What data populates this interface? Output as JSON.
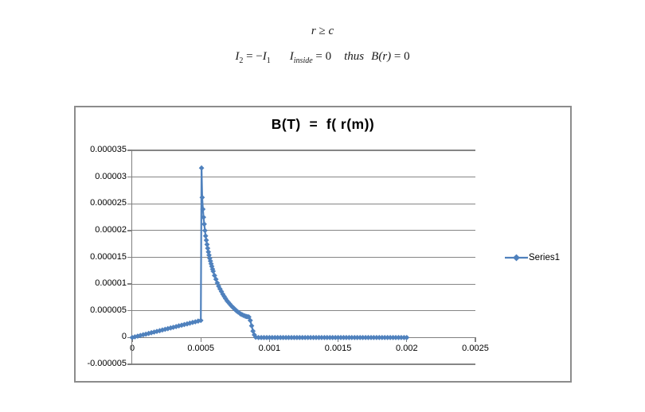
{
  "equations": {
    "line1": {
      "r": "r",
      "rel": " ≥ ",
      "c": "c"
    },
    "line2": {
      "I2": "I",
      "I2sub": "2",
      "rel1": " = −",
      "I1": "I",
      "I1sub": "1",
      "Iin": "I",
      "Iinsub": "inside",
      "rel2": " = 0",
      "thus": "thus",
      "B": "B(r)",
      "rel3": " = 0"
    }
  },
  "chart_data": {
    "type": "line",
    "title": "B(T)  =  f( r(m))",
    "xlabel": "",
    "ylabel": "",
    "grid": true,
    "legend_position": "right",
    "xlim": [
      0,
      0.0025
    ],
    "ylim": [
      -5e-06,
      3.5e-05
    ],
    "x_ticks": [
      0,
      0.0005,
      0.001,
      0.0015,
      0.002,
      0.0025
    ],
    "x_tick_labels": [
      "0",
      "0.0005",
      "0.001",
      "0.0015",
      "0.002",
      "0.0025"
    ],
    "y_ticks": [
      3.5e-05,
      3e-05,
      2.5e-05,
      2e-05,
      1.5e-05,
      1e-05,
      5e-06,
      0,
      -5e-06
    ],
    "y_tick_labels": [
      "0.000035",
      "0.00003",
      "0.000025",
      "0.00002",
      "0.000015",
      "0.00001",
      "0.000005",
      "0",
      "-0.000005"
    ],
    "series": [
      {
        "name": "Series1",
        "color": "#4F81BD",
        "marker": "diamond",
        "points": [
          [
            0,
            0
          ],
          [
            2e-05,
            1.3e-07
          ],
          [
            4e-05,
            2.6e-07
          ],
          [
            6e-05,
            3.8e-07
          ],
          [
            8e-05,
            5.1e-07
          ],
          [
            0.0001,
            6.4e-07
          ],
          [
            0.00012,
            7.7e-07
          ],
          [
            0.00014,
            9e-07
          ],
          [
            0.00016,
            1.02e-06
          ],
          [
            0.00018,
            1.15e-06
          ],
          [
            0.0002,
            1.28e-06
          ],
          [
            0.00022,
            1.41e-06
          ],
          [
            0.00024,
            1.54e-06
          ],
          [
            0.00026,
            1.66e-06
          ],
          [
            0.00028,
            1.79e-06
          ],
          [
            0.0003,
            1.92e-06
          ],
          [
            0.00032,
            2.05e-06
          ],
          [
            0.00034,
            2.18e-06
          ],
          [
            0.00036,
            2.3e-06
          ],
          [
            0.00038,
            2.43e-06
          ],
          [
            0.0004,
            2.56e-06
          ],
          [
            0.00042,
            2.69e-06
          ],
          [
            0.00044,
            2.82e-06
          ],
          [
            0.00046,
            2.94e-06
          ],
          [
            0.00048,
            3.07e-06
          ],
          [
            0.0005,
            3.2e-06
          ],
          [
            0.000505,
            3.17e-05
          ],
          [
            0.00051,
            2.62e-05
          ],
          [
            0.000515,
            2.4e-05
          ],
          [
            0.00052,
            2.25e-05
          ],
          [
            0.000525,
            2.12e-05
          ],
          [
            0.00053,
            2e-05
          ],
          [
            0.000535,
            1.9e-05
          ],
          [
            0.00054,
            1.82e-05
          ],
          [
            0.000545,
            1.74e-05
          ],
          [
            0.00055,
            1.67e-05
          ],
          [
            0.000555,
            1.6e-05
          ],
          [
            0.00056,
            1.54e-05
          ],
          [
            0.000565,
            1.48e-05
          ],
          [
            0.00057,
            1.43e-05
          ],
          [
            0.000575,
            1.38e-05
          ],
          [
            0.00058,
            1.33e-05
          ],
          [
            0.000585,
            1.28e-05
          ],
          [
            0.00059,
            1.24e-05
          ],
          [
            0.0006,
            1.16e-05
          ],
          [
            0.00061,
            1.09e-05
          ],
          [
            0.00062,
            1.02e-05
          ],
          [
            0.00063,
            9.6e-06
          ],
          [
            0.00064,
            9.1e-06
          ],
          [
            0.00065,
            8.6e-06
          ],
          [
            0.00066,
            8.1e-06
          ],
          [
            0.00067,
            7.7e-06
          ],
          [
            0.00068,
            7.3e-06
          ],
          [
            0.00069,
            6.9e-06
          ],
          [
            0.0007,
            6.6e-06
          ],
          [
            0.00071,
            6.3e-06
          ],
          [
            0.00072,
            6e-06
          ],
          [
            0.00073,
            5.7e-06
          ],
          [
            0.00074,
            5.5e-06
          ],
          [
            0.00075,
            5.2e-06
          ],
          [
            0.00076,
            5e-06
          ],
          [
            0.00077,
            4.8e-06
          ],
          [
            0.00078,
            4.6e-06
          ],
          [
            0.00079,
            4.4e-06
          ],
          [
            0.0008,
            4.3e-06
          ],
          [
            0.00081,
            4.15e-06
          ],
          [
            0.00082,
            4.05e-06
          ],
          [
            0.00083,
            3.95e-06
          ],
          [
            0.00084,
            3.9e-06
          ],
          [
            0.00085,
            3.85e-06
          ],
          [
            0.00086,
            3.2e-06
          ],
          [
            0.00087,
            2.2e-06
          ],
          [
            0.00088,
            1.2e-06
          ],
          [
            0.00089,
            5e-07
          ],
          [
            0.0009,
            5e-08
          ],
          [
            0.00092,
            0
          ],
          [
            0.00094,
            0
          ],
          [
            0.00096,
            0
          ],
          [
            0.00098,
            0
          ],
          [
            0.001,
            0
          ],
          [
            0.00102,
            0
          ],
          [
            0.00104,
            0
          ],
          [
            0.00106,
            0
          ],
          [
            0.00108,
            0
          ],
          [
            0.0011,
            0
          ],
          [
            0.00112,
            0
          ],
          [
            0.00114,
            0
          ],
          [
            0.00116,
            0
          ],
          [
            0.00118,
            0
          ],
          [
            0.0012,
            0
          ],
          [
            0.00122,
            0
          ],
          [
            0.00124,
            0
          ],
          [
            0.00126,
            0
          ],
          [
            0.00128,
            0
          ],
          [
            0.0013,
            0
          ],
          [
            0.00132,
            0
          ],
          [
            0.00134,
            0
          ],
          [
            0.00136,
            0
          ],
          [
            0.00138,
            0
          ],
          [
            0.0014,
            0
          ],
          [
            0.00142,
            0
          ],
          [
            0.00144,
            0
          ],
          [
            0.00146,
            0
          ],
          [
            0.00148,
            0
          ],
          [
            0.0015,
            0
          ],
          [
            0.00152,
            0
          ],
          [
            0.00154,
            0
          ],
          [
            0.00156,
            0
          ],
          [
            0.00158,
            0
          ],
          [
            0.0016,
            0
          ],
          [
            0.00162,
            0
          ],
          [
            0.00164,
            0
          ],
          [
            0.00166,
            0
          ],
          [
            0.00168,
            0
          ],
          [
            0.0017,
            0
          ],
          [
            0.00172,
            0
          ],
          [
            0.00174,
            0
          ],
          [
            0.00176,
            0
          ],
          [
            0.00178,
            0
          ],
          [
            0.0018,
            0
          ],
          [
            0.00182,
            0
          ],
          [
            0.00184,
            0
          ],
          [
            0.00186,
            0
          ],
          [
            0.00188,
            0
          ],
          [
            0.0019,
            0
          ],
          [
            0.00192,
            0
          ],
          [
            0.00194,
            0
          ],
          [
            0.00196,
            0
          ],
          [
            0.00198,
            0
          ],
          [
            0.002,
            0
          ]
        ]
      }
    ]
  },
  "colors": {
    "series": "#4F81BD",
    "grid": "#858585",
    "axis": "#7F7F7F",
    "chart_border": "#8C8C8C",
    "text": "#000000"
  }
}
